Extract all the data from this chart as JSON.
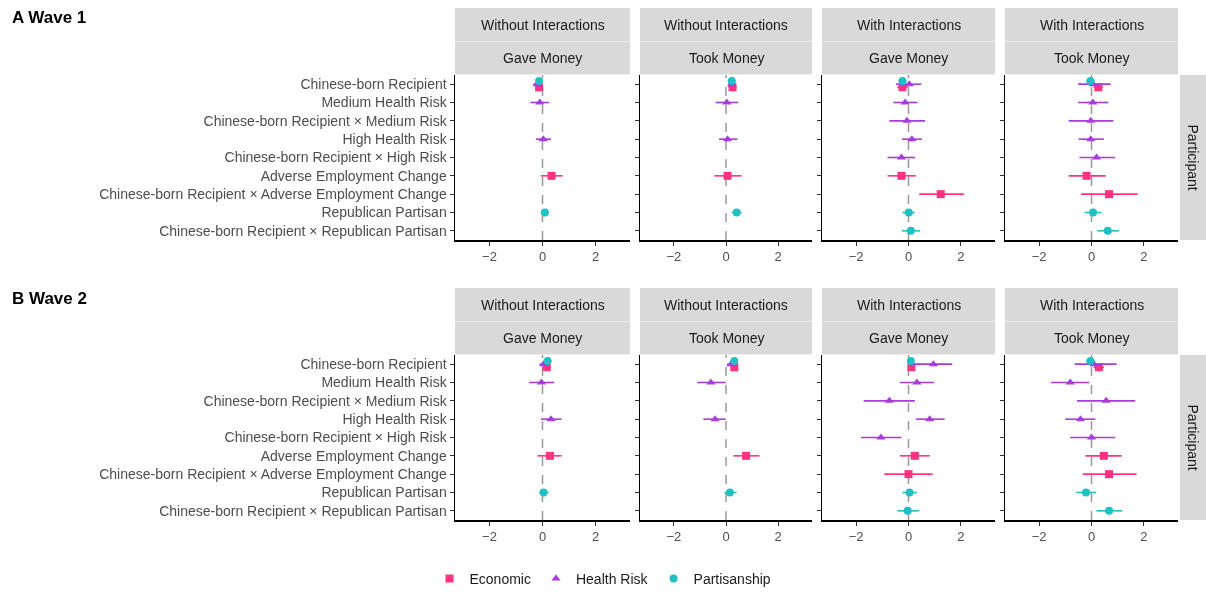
{
  "chart_data": [
    {
      "type": "scatter",
      "orientation": "horizontal",
      "title": "Without Interactions",
      "subtitle": "Gave Money",
      "annotations": [
        "A Wave 1"
      ],
      "legend": "bottom",
      "categories": [
        "Chinese-born Recipient",
        "Medium Health Risk",
        "Chinese-born Recipient × Medium Risk",
        "High Health Risk",
        "Chinese-born Recipient × High Risk",
        "Adverse Employment Change",
        "Chinese-born Recipient × Adverse Employment Change",
        "Republican Partisan",
        "Chinese-born Recipient × Republican Partisan"
      ],
      "xlim": [
        -3.3,
        3.3
      ],
      "xticks": [
        -2,
        0,
        2
      ],
      "grid": false,
      "ref_lines": [
        {
          "axis": "x",
          "value": 0,
          "color": "#999999",
          "line_style": "dashed"
        }
      ],
      "series": [
        {
          "name": "Economic",
          "color": "#ff3380",
          "marker": "square",
          "values": [
            -0.13,
            null,
            null,
            null,
            null,
            0.34,
            null,
            null,
            null
          ],
          "errors": [
            null,
            null,
            null,
            null,
            null,
            [
              -0.06,
              0.76
            ],
            null,
            null,
            null
          ]
        },
        {
          "name": "Health Risk",
          "color": "#a83bdc",
          "marker": "triangle",
          "values": [
            -0.2,
            -0.1,
            null,
            0.03,
            null,
            null,
            null,
            null,
            null
          ],
          "errors": [
            [
              -0.35,
              -0.05
            ],
            [
              -0.45,
              0.25
            ],
            null,
            [
              -0.25,
              0.32
            ],
            null,
            null,
            null,
            null,
            null
          ]
        },
        {
          "name": "Partisanship",
          "color": "#22bfc4",
          "marker": "circle",
          "values": [
            -0.13,
            null,
            null,
            null,
            null,
            null,
            null,
            0.09,
            null
          ],
          "errors": [
            null,
            null,
            null,
            null,
            null,
            null,
            null,
            [
              -0.06,
              0.25
            ],
            null
          ]
        }
      ]
    },
    {
      "type": "scatter",
      "orientation": "horizontal",
      "title": "Without Interactions",
      "subtitle": "Took Money",
      "tick_labels": "x",
      "categories": [
        "Chinese-born Recipient",
        "Medium Health Risk",
        "Chinese-born Recipient × Medium Risk",
        "High Health Risk",
        "Chinese-born Recipient × High Risk",
        "Adverse Employment Change",
        "Chinese-born Recipient × Adverse Employment Change",
        "Republican Partisan",
        "Chinese-born Recipient × Republican Partisan"
      ],
      "xlim": [
        -3.3,
        3.3
      ],
      "xticks": [
        -2,
        0,
        2
      ],
      "grid": false,
      "ref_lines": [
        {
          "axis": "x",
          "value": 0,
          "color": "#999999",
          "line_style": "dashed"
        }
      ],
      "series": [
        {
          "name": "Economic",
          "color": "#ff3380",
          "marker": "square",
          "values": [
            0.25,
            null,
            null,
            null,
            null,
            0.06,
            null,
            null,
            null
          ],
          "errors": [
            [
              0.1,
              0.4
            ],
            null,
            null,
            null,
            null,
            [
              -0.45,
              0.6
            ],
            null,
            null,
            null
          ]
        },
        {
          "name": "Health Risk",
          "color": "#a83bdc",
          "marker": "triangle",
          "values": [
            0.22,
            0.03,
            null,
            0.06,
            null,
            null,
            null,
            null,
            null
          ],
          "errors": [
            [
              0.07,
              0.37
            ],
            [
              -0.4,
              0.47
            ],
            null,
            [
              -0.27,
              0.44
            ],
            null,
            null,
            null,
            null,
            null
          ]
        },
        {
          "name": "Partisanship",
          "color": "#22bfc4",
          "marker": "circle",
          "values": [
            0.22,
            null,
            null,
            null,
            null,
            null,
            null,
            0.41,
            null
          ],
          "errors": [
            [
              0.07,
              0.37
            ],
            null,
            null,
            null,
            null,
            null,
            null,
            [
              0.22,
              0.6
            ],
            null
          ]
        }
      ]
    },
    {
      "type": "scatter",
      "orientation": "horizontal",
      "title": "With Interactions",
      "subtitle": "Gave Money",
      "tick_labels": "x",
      "categories": [
        "Chinese-born Recipient",
        "Medium Health Risk",
        "Chinese-born Recipient × Medium Risk",
        "High Health Risk",
        "Chinese-born Recipient × High Risk",
        "Adverse Employment Change",
        "Chinese-born Recipient × Adverse Employment Change",
        "Republican Partisan",
        "Chinese-born Recipient × Republican Partisan"
      ],
      "xlim": [
        -3.3,
        3.3
      ],
      "xticks": [
        -2,
        0,
        2
      ],
      "grid": false,
      "ref_lines": [
        {
          "axis": "x",
          "value": 0,
          "color": "#999999",
          "line_style": "dashed"
        }
      ],
      "series": [
        {
          "name": "Economic",
          "color": "#ff3380",
          "marker": "square",
          "values": [
            -0.23,
            null,
            null,
            null,
            null,
            -0.27,
            1.23,
            null,
            null
          ],
          "errors": [
            [
              -0.43,
              -0.03
            ],
            null,
            null,
            null,
            null,
            [
              -0.8,
              0.28
            ],
            [
              0.41,
              2.11
            ],
            null,
            null
          ]
        },
        {
          "name": "Health Risk",
          "color": "#a83bdc",
          "marker": "triangle",
          "values": [
            0.03,
            -0.13,
            -0.06,
            0.13,
            -0.27,
            null,
            null,
            null,
            null
          ],
          "errors": [
            [
              -0.48,
              0.49
            ],
            [
              -0.58,
              0.34
            ],
            [
              -0.73,
              0.63
            ],
            [
              -0.25,
              0.51
            ],
            [
              -0.8,
              0.25
            ],
            null,
            null,
            null,
            null
          ]
        },
        {
          "name": "Partisanship",
          "color": "#22bfc4",
          "marker": "circle",
          "values": [
            -0.23,
            null,
            null,
            null,
            null,
            null,
            null,
            0.01,
            0.09
          ],
          "errors": [
            [
              -0.38,
              -0.08
            ],
            null,
            null,
            null,
            null,
            null,
            null,
            [
              -0.23,
              0.24
            ],
            [
              -0.25,
              0.44
            ]
          ]
        }
      ]
    },
    {
      "type": "scatter",
      "orientation": "horizontal",
      "title": "With Interactions",
      "subtitle": "Took Money",
      "y2label": "Participant",
      "tick_labels": "x",
      "categories": [
        "Chinese-born Recipient",
        "Medium Health Risk",
        "Chinese-born Recipient × Medium Risk",
        "High Health Risk",
        "Chinese-born Recipient × High Risk",
        "Adverse Employment Change",
        "Chinese-born Recipient × Adverse Employment Change",
        "Republican Partisan",
        "Chinese-born Recipient × Republican Partisan"
      ],
      "xlim": [
        -3.3,
        3.3
      ],
      "xticks": [
        -2,
        0,
        2
      ],
      "grid": false,
      "ref_lines": [
        {
          "axis": "x",
          "value": 0,
          "color": "#999999",
          "line_style": "dashed"
        }
      ],
      "series": [
        {
          "name": "Economic",
          "color": "#ff3380",
          "marker": "square",
          "values": [
            0.26,
            null,
            null,
            null,
            null,
            -0.19,
            0.67,
            null,
            null
          ],
          "errors": [
            [
              0.08,
              0.44
            ],
            null,
            null,
            null,
            null,
            [
              -0.87,
              0.54
            ],
            [
              -0.4,
              1.76
            ],
            null,
            null
          ]
        },
        {
          "name": "Health Risk",
          "color": "#a83bdc",
          "marker": "triangle",
          "values": [
            0.06,
            0.05,
            -0.03,
            -0.03,
            0.19,
            null,
            null,
            null,
            null
          ],
          "errors": [
            [
              -0.51,
              0.73
            ],
            [
              -0.51,
              0.64
            ],
            [
              -0.87,
              0.83
            ],
            [
              -0.49,
              0.47
            ],
            [
              -0.46,
              0.9
            ],
            null,
            null,
            null,
            null
          ]
        },
        {
          "name": "Partisanship",
          "color": "#22bfc4",
          "marker": "circle",
          "values": [
            -0.04,
            null,
            null,
            null,
            null,
            null,
            null,
            0.06,
            0.62
          ],
          "errors": [
            [
              -0.2,
              0.12
            ],
            null,
            null,
            null,
            null,
            null,
            null,
            [
              -0.26,
              0.38
            ],
            [
              0.22,
              1.05
            ]
          ]
        }
      ]
    },
    {
      "type": "scatter",
      "orientation": "horizontal",
      "title": "Without Interactions",
      "subtitle": "Gave Money",
      "annotations": [
        "B Wave 2"
      ],
      "categories": [
        "Chinese-born Recipient",
        "Medium Health Risk",
        "Chinese-born Recipient × Medium Risk",
        "High Health Risk",
        "Chinese-born Recipient × High Risk",
        "Adverse Employment Change",
        "Chinese-born Recipient × Adverse Employment Change",
        "Republican Partisan",
        "Chinese-born Recipient × Republican Partisan"
      ],
      "xlim": [
        -3.3,
        3.3
      ],
      "xticks": [
        -2,
        0,
        2
      ],
      "grid": false,
      "ref_lines": [
        {
          "axis": "x",
          "value": 0,
          "color": "#999999",
          "line_style": "dashed"
        }
      ],
      "series": [
        {
          "name": "Economic",
          "color": "#ff3380",
          "marker": "square",
          "values": [
            0.16,
            null,
            null,
            null,
            null,
            0.28,
            null,
            null,
            null
          ],
          "errors": [
            [
              0.01,
              0.31
            ],
            null,
            null,
            null,
            null,
            [
              -0.19,
              0.72
            ],
            null,
            null,
            null
          ]
        },
        {
          "name": "Health Risk",
          "color": "#a83bdc",
          "marker": "triangle",
          "values": [
            0.04,
            -0.04,
            null,
            0.32,
            null,
            null,
            null,
            null,
            null
          ],
          "errors": [
            [
              -0.11,
              0.19
            ],
            [
              -0.5,
              0.44
            ],
            null,
            [
              -0.06,
              0.72
            ],
            null,
            null,
            null,
            null,
            null
          ]
        },
        {
          "name": "Partisanship",
          "color": "#22bfc4",
          "marker": "circle",
          "values": [
            0.19,
            null,
            null,
            null,
            null,
            null,
            null,
            0.04,
            null
          ],
          "errors": [
            [
              0.04,
              0.34
            ],
            null,
            null,
            null,
            null,
            null,
            null,
            [
              -0.13,
              0.23
            ],
            null
          ]
        }
      ]
    },
    {
      "type": "scatter",
      "orientation": "horizontal",
      "title": "Without Interactions",
      "subtitle": "Took Money",
      "tick_labels": "x",
      "categories": [
        "Chinese-born Recipient",
        "Medium Health Risk",
        "Chinese-born Recipient × Medium Risk",
        "High Health Risk",
        "Chinese-born Recipient × High Risk",
        "Adverse Employment Change",
        "Chinese-born Recipient × Adverse Employment Change",
        "Republican Partisan",
        "Chinese-born Recipient × Republican Partisan"
      ],
      "xlim": [
        -3.3,
        3.3
      ],
      "xticks": [
        -2,
        0,
        2
      ],
      "grid": false,
      "ref_lines": [
        {
          "axis": "x",
          "value": 0,
          "color": "#999999",
          "line_style": "dashed"
        }
      ],
      "series": [
        {
          "name": "Economic",
          "color": "#ff3380",
          "marker": "square",
          "values": [
            0.32,
            null,
            null,
            null,
            null,
            0.77,
            null,
            null,
            null
          ],
          "errors": [
            null,
            null,
            null,
            null,
            null,
            [
              0.28,
              1.28
            ],
            null,
            null,
            null
          ]
        },
        {
          "name": "Health Risk",
          "color": "#a83bdc",
          "marker": "triangle",
          "values": [
            0.19,
            -0.58,
            null,
            -0.42,
            null,
            null,
            null,
            null,
            null
          ],
          "errors": [
            [
              0.04,
              0.34
            ],
            [
              -1.1,
              -0.01
            ],
            null,
            [
              -0.87,
              -0.01
            ],
            null,
            null,
            null,
            null,
            null
          ]
        },
        {
          "name": "Partisanship",
          "color": "#22bfc4",
          "marker": "circle",
          "values": [
            0.32,
            null,
            null,
            null,
            null,
            null,
            null,
            0.15,
            null
          ],
          "errors": [
            null,
            null,
            null,
            null,
            null,
            null,
            null,
            [
              -0.06,
              0.41
            ],
            null
          ]
        }
      ]
    },
    {
      "type": "scatter",
      "orientation": "horizontal",
      "title": "With Interactions",
      "subtitle": "Gave Money",
      "tick_labels": "x",
      "categories": [
        "Chinese-born Recipient",
        "Medium Health Risk",
        "Chinese-born Recipient × Medium Risk",
        "High Health Risk",
        "Chinese-born Recipient × High Risk",
        "Adverse Employment Change",
        "Chinese-born Recipient × Adverse Employment Change",
        "Republican Partisan",
        "Chinese-born Recipient × Republican Partisan"
      ],
      "xlim": [
        -3.3,
        3.3
      ],
      "xticks": [
        -2,
        0,
        2
      ],
      "grid": false,
      "ref_lines": [
        {
          "axis": "x",
          "value": 0,
          "color": "#999999",
          "line_style": "dashed"
        }
      ],
      "series": [
        {
          "name": "Economic",
          "color": "#ff3380",
          "marker": "square",
          "values": [
            0.11,
            null,
            null,
            null,
            null,
            0.24,
            0,
            null,
            null
          ],
          "errors": [
            null,
            null,
            null,
            null,
            null,
            [
              -0.33,
              0.81
            ],
            [
              -0.92,
              0.92
            ],
            null,
            null
          ]
        },
        {
          "name": "Health Risk",
          "color": "#a83bdc",
          "marker": "triangle",
          "values": [
            0.95,
            0.32,
            -0.73,
            0.81,
            -1.05,
            null,
            null,
            null,
            null
          ],
          "errors": [
            [
              0.03,
              1.67
            ],
            [
              -0.33,
              0.97
            ],
            [
              -1.71,
              0.24
            ],
            [
              0.28,
              1.38
            ],
            [
              -1.81,
              -0.27
            ],
            null,
            null,
            null,
            null
          ]
        },
        {
          "name": "Partisanship",
          "color": "#22bfc4",
          "marker": "circle",
          "values": [
            0.09,
            null,
            null,
            null,
            null,
            null,
            null,
            0.04,
            -0.03
          ],
          "errors": [
            null,
            null,
            null,
            null,
            null,
            null,
            null,
            [
              -0.23,
              0.32
            ],
            [
              -0.42,
              0.41
            ]
          ]
        }
      ]
    },
    {
      "type": "scatter",
      "orientation": "horizontal",
      "title": "With Interactions",
      "subtitle": "Took Money",
      "y2label": "Participant",
      "tick_labels": "x",
      "categories": [
        "Chinese-born Recipient",
        "Medium Health Risk",
        "Chinese-born Recipient × Medium Risk",
        "High Health Risk",
        "Chinese-born Recipient × High Risk",
        "Adverse Employment Change",
        "Chinese-born Recipient × Adverse Employment Change",
        "Republican Partisan",
        "Chinese-born Recipient × Republican Partisan"
      ],
      "xlim": [
        -3.3,
        3.3
      ],
      "xticks": [
        -2,
        0,
        2
      ],
      "grid": false,
      "ref_lines": [
        {
          "axis": "x",
          "value": 0,
          "color": "#999999",
          "line_style": "dashed"
        }
      ],
      "series": [
        {
          "name": "Economic",
          "color": "#ff3380",
          "marker": "square",
          "values": [
            0.28,
            null,
            null,
            null,
            null,
            0.47,
            0.67,
            null,
            null
          ],
          "errors": [
            [
              0.08,
              0.48
            ],
            null,
            null,
            null,
            null,
            [
              -0.23,
              1.15
            ],
            [
              -0.33,
              1.72
            ],
            null,
            null
          ]
        },
        {
          "name": "Health Risk",
          "color": "#a83bdc",
          "marker": "triangle",
          "values": [
            0.09,
            -0.81,
            0.56,
            -0.42,
            0,
            null,
            null,
            null,
            null
          ],
          "errors": [
            [
              -0.64,
              0.96
            ],
            [
              -1.55,
              -0.08
            ],
            [
              -0.55,
              1.67
            ],
            [
              -1,
              0.15
            ],
            [
              -0.81,
              0.9
            ],
            null,
            null,
            null,
            null
          ]
        },
        {
          "name": "Partisanship",
          "color": "#22bfc4",
          "marker": "circle",
          "values": [
            -0.04,
            null,
            null,
            null,
            null,
            null,
            null,
            -0.21,
            0.67
          ],
          "errors": [
            [
              -0.2,
              0.12
            ],
            null,
            null,
            null,
            null,
            null,
            null,
            [
              -0.58,
              0.18
            ],
            [
              0.19,
              1.18
            ]
          ]
        }
      ]
    }
  ]
}
